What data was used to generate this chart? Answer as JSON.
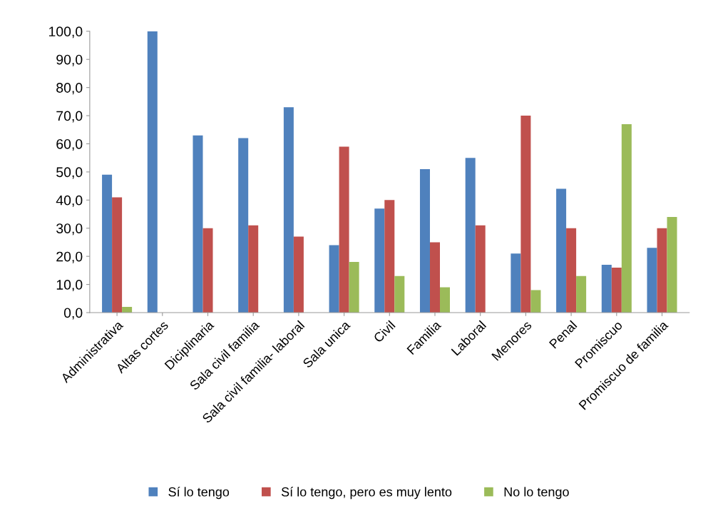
{
  "chart_data": {
    "type": "bar",
    "categories": [
      "Administrativa",
      "Altas cortes",
      "Diciplinaria",
      "Sala civil familia",
      "Sala civil familia- laboral",
      "Sala unica",
      "Civil",
      "Familia",
      "Laboral",
      "Menores",
      "Penal",
      "Promiscuo",
      "Promiscuo de familia"
    ],
    "series": [
      {
        "name": "Sí lo tengo",
        "color": "#4f81bd",
        "values": [
          49,
          100,
          63,
          62,
          73,
          24,
          37,
          51,
          55,
          21,
          44,
          17,
          23
        ]
      },
      {
        "name": "Sí lo tengo, pero es muy lento",
        "color": "#c0504d",
        "values": [
          41,
          0,
          30,
          31,
          27,
          59,
          40,
          25,
          31,
          70,
          30,
          16,
          30
        ]
      },
      {
        "name": "No lo tengo",
        "color": "#9bbb59",
        "values": [
          2,
          0,
          0,
          0,
          0,
          18,
          13,
          9,
          0,
          8,
          13,
          67,
          34
        ]
      }
    ],
    "ylim": [
      0,
      100
    ],
    "yticks": [
      {
        "value": 0,
        "label": "0,0"
      },
      {
        "value": 10,
        "label": "10,0"
      },
      {
        "value": 20,
        "label": "20,0"
      },
      {
        "value": 30,
        "label": "30,0"
      },
      {
        "value": 40,
        "label": "40,0"
      },
      {
        "value": 50,
        "label": "50,0"
      },
      {
        "value": 60,
        "label": "60,0"
      },
      {
        "value": 70,
        "label": "70,0"
      },
      {
        "value": 80,
        "label": "80,0"
      },
      {
        "value": 90,
        "label": "90,0"
      },
      {
        "value": 100,
        "label": "100,0"
      }
    ],
    "grid": false,
    "legend": "bottom"
  }
}
